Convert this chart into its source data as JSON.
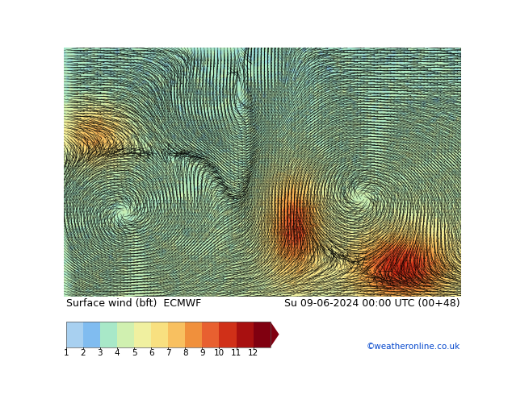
{
  "title_left": "Surface wind (bft)  ECMWF",
  "title_right": "Su 09-06-2024 00:00 UTC (00+48)",
  "credit": "©weatheronline.co.uk",
  "colorbar_labels": [
    "1",
    "2",
    "3",
    "4",
    "5",
    "6",
    "7",
    "8",
    "9",
    "10",
    "11",
    "12"
  ],
  "colorbar_colors": [
    "#a8d0f0",
    "#80bcf0",
    "#a8e8c8",
    "#d0f0b0",
    "#f0f0a0",
    "#f8e080",
    "#f8c060",
    "#f0903c",
    "#e86030",
    "#d03018",
    "#a81010",
    "#800010"
  ],
  "bg_color": "#ffffff",
  "arrow_color": "#000000",
  "figsize": [
    6.34,
    4.9
  ],
  "dpi": 100,
  "font_color_left": "#000000",
  "font_color_right": "#000000",
  "credit_color": "#0044cc",
  "font_size_title": 9,
  "font_size_credit": 7.5,
  "font_size_cbar": 7.5
}
